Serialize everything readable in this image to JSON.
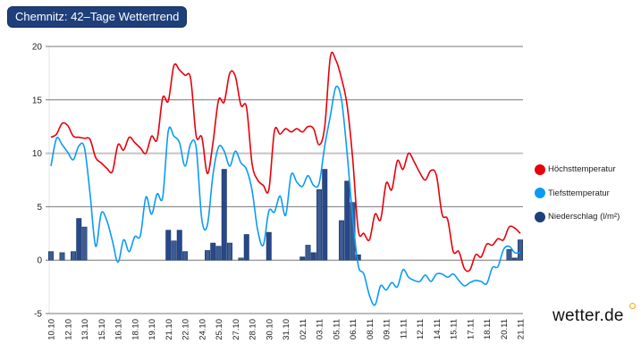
{
  "title": "Chemnitz: 42–Tage Wettertrend",
  "logo": "wetter.de",
  "chart_data": {
    "type": "line",
    "title": "Chemnitz: 42–Tage Wettertrend",
    "x_unit": "days from 10.10 (half-day steps)",
    "x_step": 0.5,
    "ylim": [
      -5,
      20
    ],
    "yticks": [
      -5,
      0,
      5,
      10,
      15,
      20
    ],
    "grid": true,
    "legend_position": "right",
    "xtick_labels": [
      "10.10",
      "12.10",
      "13.10",
      "15.10",
      "16.10",
      "18.10",
      "19.10",
      "21.10",
      "22.10",
      "24.10",
      "25.10",
      "27.10",
      "28.10",
      "30.10",
      "31.10",
      "02.11",
      "03.11",
      "05.11",
      "06.11",
      "08.11",
      "09.11",
      "11.11",
      "12.11",
      "14.11",
      "15.11",
      "17.11",
      "18.11",
      "20.11",
      "21.11"
    ],
    "xtick_step_days": 1.5,
    "series": [
      {
        "name": "Höchsttemperatur",
        "type": "line",
        "color": "#e8000b",
        "values": [
          11.5,
          11.8,
          12.8,
          12.6,
          11.6,
          11.5,
          11.4,
          11.3,
          9.6,
          9.1,
          8.6,
          8.3,
          10.8,
          10.3,
          11.5,
          11.0,
          10.5,
          10.0,
          11.6,
          11.3,
          15.2,
          14.9,
          18.2,
          17.8,
          17.3,
          17.0,
          11.6,
          11.5,
          8.1,
          11.0,
          15.0,
          14.8,
          17.5,
          17.2,
          14.5,
          14.3,
          9.0,
          7.5,
          7.0,
          6.6,
          12.1,
          11.8,
          12.3,
          12.0,
          12.3,
          12.0,
          12.5,
          12.3,
          10.8,
          12.5,
          19.0,
          18.7,
          17.0,
          14.5,
          9.5,
          2.8,
          2.5,
          1.9,
          4.3,
          3.8,
          7.2,
          6.6,
          9.3,
          8.5,
          10.0,
          9.2,
          8.2,
          7.5,
          8.4,
          7.9,
          4.3,
          3.8,
          0.8,
          0.8,
          -0.8,
          -0.9,
          0.5,
          0.3,
          1.5,
          1.4,
          2.0,
          1.9,
          3.1,
          3.0,
          2.5
        ]
      },
      {
        "name": "Tiefsttemperatur",
        "type": "line",
        "color": "#0a9bf5",
        "values": [
          8.8,
          11.4,
          10.8,
          10.1,
          9.4,
          10.7,
          10.5,
          6.2,
          1.3,
          4.4,
          3.7,
          1.8,
          -0.2,
          1.9,
          0.8,
          2.2,
          2.3,
          5.9,
          4.3,
          6.2,
          5.9,
          12.1,
          11.6,
          11.0,
          8.8,
          10.9,
          10.5,
          3.8,
          3.3,
          8.0,
          10.6,
          10.2,
          8.8,
          10.2,
          9.1,
          8.5,
          6.5,
          2.8,
          1.4,
          4.6,
          4.5,
          6.0,
          4.2,
          8.0,
          7.3,
          6.9,
          7.9,
          7.0,
          7.2,
          10.7,
          13.5,
          16.2,
          15.0,
          10.0,
          4.0,
          -0.5,
          -1.3,
          -3.3,
          -4.2,
          -2.4,
          -2.8,
          -2.1,
          -2.5,
          -0.9,
          -1.6,
          -1.9,
          -2.0,
          -1.4,
          -2.0,
          -1.3,
          -1.3,
          -1.6,
          -1.3,
          -1.9,
          -2.4,
          -2.1,
          -1.9,
          -2.0,
          -2.2,
          -0.7,
          -0.6,
          1.0,
          1.3,
          0.7,
          0.7
        ]
      },
      {
        "name": "Niederschlag (l/m²)",
        "type": "bar",
        "color": "#1e3f7a",
        "values": [
          0.8,
          0,
          0.7,
          0,
          0.8,
          3.9,
          3.1,
          0,
          0,
          0,
          0,
          0,
          0,
          0,
          0,
          0,
          0,
          0,
          0,
          0,
          0,
          2.8,
          1.8,
          2.8,
          0.8,
          0,
          0,
          0,
          0.9,
          1.6,
          1.3,
          8.5,
          1.6,
          0,
          0.2,
          2.4,
          0,
          0,
          0,
          2.6,
          0,
          0,
          0,
          0,
          0,
          0.3,
          1.4,
          0.7,
          6.6,
          8.5,
          0,
          0,
          3.7,
          7.4,
          5.4,
          0.5,
          0,
          0,
          0,
          0,
          0,
          0,
          0,
          0,
          0,
          0,
          0,
          0,
          0,
          0,
          0,
          0,
          0,
          0,
          0,
          0,
          0,
          0,
          0,
          0,
          0,
          0,
          1.0,
          0.2,
          1.9
        ]
      }
    ]
  }
}
